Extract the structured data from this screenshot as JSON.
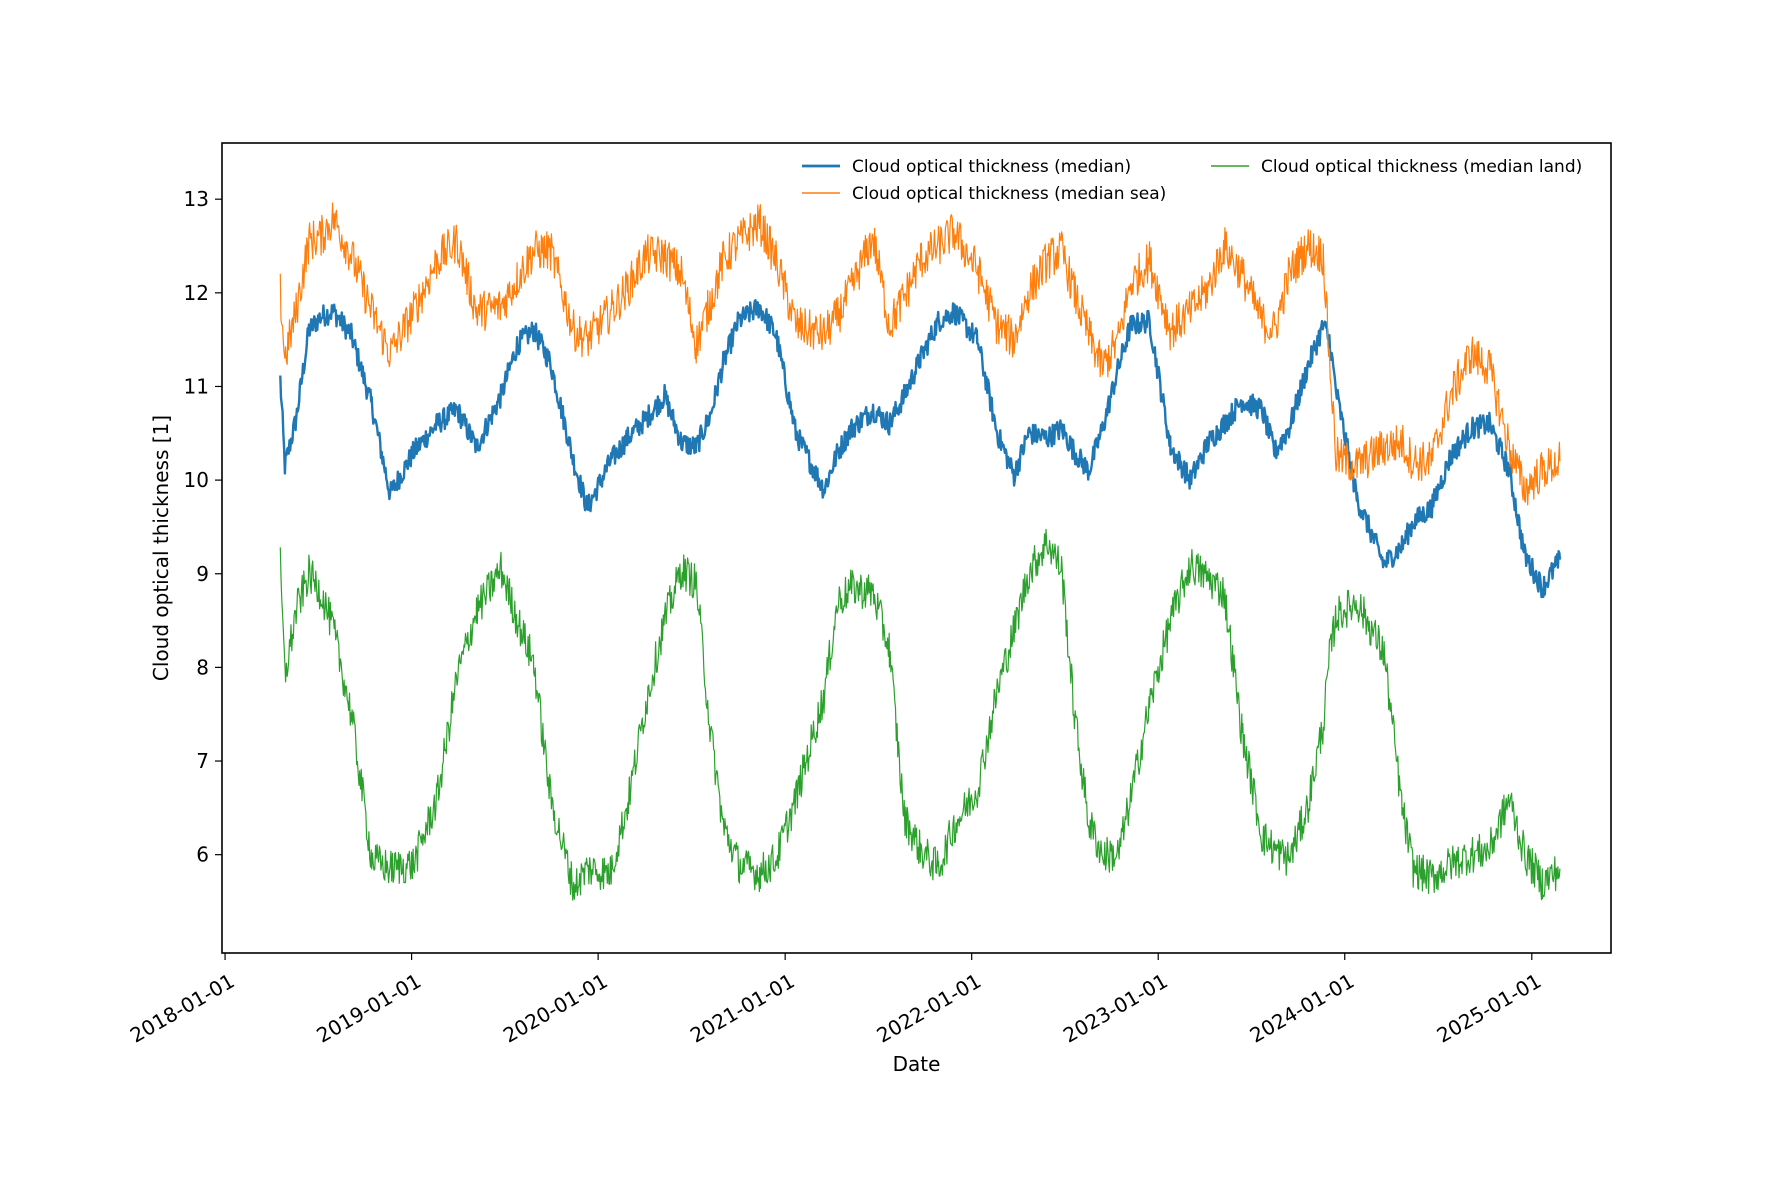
{
  "chart_data": {
    "type": "line",
    "title": "",
    "xlabel": "Date",
    "ylabel": "Cloud optical thickness [1]",
    "xlim": [
      "2017-12-26",
      "2025-06-05"
    ],
    "ylim": [
      4.95,
      13.6
    ],
    "x_ticks": [
      "2018-01-01",
      "2019-01-01",
      "2020-01-01",
      "2021-01-01",
      "2022-01-01",
      "2023-01-01",
      "2024-01-01",
      "2025-01-01"
    ],
    "y_ticks": [
      6,
      7,
      8,
      9,
      10,
      11,
      12,
      13
    ],
    "legend": {
      "placement": "top-right",
      "columns": 2
    },
    "grid": false,
    "series": [
      {
        "name": "Cloud optical thickness (median)",
        "color": "#1f77b4",
        "x": [
          "2018-04-19",
          "2018-04-28",
          "2018-05-20",
          "2018-06-14",
          "2018-07-08",
          "2018-08-01",
          "2018-09-05",
          "2018-10-15",
          "2018-11-20",
          "2019-01-05",
          "2019-02-20",
          "2019-03-31",
          "2019-05-08",
          "2019-06-25",
          "2019-07-27",
          "2019-08-28",
          "2019-09-30",
          "2019-11-14",
          "2019-12-11",
          "2020-01-25",
          "2020-02-28",
          "2020-04-03",
          "2020-05-10",
          "2020-06-12",
          "2020-07-11",
          "2020-08-08",
          "2020-09-02",
          "2020-10-02",
          "2020-11-12",
          "2020-12-14",
          "2021-01-22",
          "2021-03-18",
          "2021-04-14",
          "2021-05-11",
          "2021-06-22",
          "2021-07-24",
          "2021-08-22",
          "2021-09-23",
          "2021-10-28",
          "2021-11-27",
          "2022-01-12",
          "2022-02-20",
          "2022-03-25",
          "2022-04-22",
          "2022-05-29",
          "2022-06-26",
          "2022-07-21",
          "2022-08-18",
          "2022-09-14",
          "2022-10-15",
          "2022-11-08",
          "2022-12-15",
          "2023-01-25",
          "2023-03-05",
          "2023-04-09",
          "2023-05-10",
          "2023-06-14",
          "2023-07-23",
          "2023-08-17",
          "2023-09-14",
          "2023-10-20",
          "2023-11-20",
          "2023-12-02",
          "2023-12-15",
          "2024-01-25",
          "2024-03-18",
          "2024-04-22",
          "2024-05-14",
          "2024-06-18",
          "2024-07-26",
          "2024-09-04",
          "2024-10-10",
          "2024-11-18",
          "2024-12-18",
          "2025-01-22",
          "2025-02-25"
        ],
        "y": [
          11.08,
          10.15,
          10.65,
          11.6,
          11.75,
          11.8,
          11.55,
          10.8,
          9.85,
          10.3,
          10.6,
          10.75,
          10.35,
          10.9,
          11.45,
          11.6,
          11.25,
          10.2,
          9.7,
          10.2,
          10.45,
          10.65,
          10.9,
          10.4,
          10.35,
          10.7,
          11.25,
          11.7,
          11.85,
          11.55,
          10.5,
          9.9,
          10.3,
          10.55,
          10.75,
          10.6,
          10.9,
          11.3,
          11.7,
          11.8,
          11.5,
          10.5,
          10.05,
          10.5,
          10.45,
          10.55,
          10.3,
          10.1,
          10.55,
          11.2,
          11.65,
          11.7,
          10.35,
          10.0,
          10.4,
          10.6,
          10.85,
          10.75,
          10.3,
          10.55,
          11.2,
          11.65,
          11.5,
          10.95,
          9.8,
          9.1,
          9.3,
          9.55,
          9.7,
          10.25,
          10.55,
          10.6,
          10.1,
          9.2,
          8.85,
          9.15
        ]
      },
      {
        "name": "Cloud optical thickness (median sea)",
        "color": "#ff7f0e",
        "x": [
          "2018-04-19",
          "2018-04-28",
          "2018-05-20",
          "2018-06-14",
          "2018-07-08",
          "2018-08-01",
          "2018-09-05",
          "2018-10-15",
          "2018-11-20",
          "2019-01-05",
          "2019-02-20",
          "2019-03-31",
          "2019-05-08",
          "2019-06-25",
          "2019-07-27",
          "2019-08-28",
          "2019-09-30",
          "2019-11-14",
          "2019-12-11",
          "2020-01-25",
          "2020-02-28",
          "2020-04-03",
          "2020-05-10",
          "2020-06-12",
          "2020-07-11",
          "2020-08-08",
          "2020-09-02",
          "2020-10-02",
          "2020-11-12",
          "2020-12-14",
          "2021-01-22",
          "2021-03-18",
          "2021-04-14",
          "2021-05-11",
          "2021-06-22",
          "2021-07-24",
          "2021-08-22",
          "2021-09-23",
          "2021-10-28",
          "2021-11-27",
          "2022-01-12",
          "2022-02-20",
          "2022-03-25",
          "2022-04-22",
          "2022-05-29",
          "2022-06-26",
          "2022-07-21",
          "2022-08-18",
          "2022-09-14",
          "2022-10-15",
          "2022-11-08",
          "2022-12-15",
          "2023-01-25",
          "2023-03-05",
          "2023-04-09",
          "2023-05-10",
          "2023-06-14",
          "2023-07-23",
          "2023-08-17",
          "2023-09-14",
          "2023-10-20",
          "2023-11-20",
          "2023-12-02",
          "2023-12-15",
          "2024-01-25",
          "2024-03-18",
          "2024-04-22",
          "2024-05-14",
          "2024-06-18",
          "2024-07-26",
          "2024-09-04",
          "2024-10-10",
          "2024-11-18",
          "2024-12-18",
          "2025-01-22",
          "2025-02-25"
        ],
        "y": [
          12.0,
          11.3,
          11.8,
          12.55,
          12.6,
          12.8,
          12.4,
          11.8,
          11.35,
          11.8,
          12.35,
          12.55,
          11.8,
          11.85,
          12.15,
          12.45,
          12.45,
          11.6,
          11.5,
          11.8,
          12.05,
          12.4,
          12.4,
          12.2,
          11.45,
          11.9,
          12.35,
          12.55,
          12.75,
          12.35,
          11.65,
          11.55,
          11.75,
          12.05,
          12.6,
          11.65,
          11.95,
          12.35,
          12.5,
          12.65,
          12.25,
          11.65,
          11.5,
          12.0,
          12.35,
          12.45,
          12.0,
          11.55,
          11.2,
          11.5,
          12.1,
          12.35,
          11.6,
          11.8,
          12.05,
          12.5,
          12.2,
          11.7,
          11.6,
          12.2,
          12.5,
          12.4,
          11.3,
          10.25,
          10.15,
          10.35,
          10.4,
          10.2,
          10.2,
          10.9,
          11.35,
          11.2,
          10.35,
          9.9,
          10.1,
          10.2
        ]
      },
      {
        "name": "Cloud optical thickness (median land)",
        "color": "#2ca02c",
        "x": [
          "2018-04-19",
          "2018-04-28",
          "2018-05-20",
          "2018-06-14",
          "2018-07-08",
          "2018-08-01",
          "2018-09-05",
          "2018-10-15",
          "2018-11-20",
          "2019-01-05",
          "2019-02-20",
          "2019-03-31",
          "2019-05-08",
          "2019-06-25",
          "2019-07-27",
          "2019-08-28",
          "2019-09-30",
          "2019-11-14",
          "2019-12-11",
          "2020-01-25",
          "2020-02-28",
          "2020-04-03",
          "2020-05-10",
          "2020-06-12",
          "2020-07-11",
          "2020-08-08",
          "2020-09-02",
          "2020-10-02",
          "2020-11-12",
          "2020-12-14",
          "2021-01-22",
          "2021-03-18",
          "2021-04-14",
          "2021-05-11",
          "2021-06-22",
          "2021-07-24",
          "2021-08-22",
          "2021-09-23",
          "2021-10-28",
          "2021-11-27",
          "2022-01-12",
          "2022-02-20",
          "2022-03-25",
          "2022-04-22",
          "2022-05-29",
          "2022-06-26",
          "2022-07-21",
          "2022-08-18",
          "2022-09-14",
          "2022-10-15",
          "2022-11-08",
          "2022-12-15",
          "2023-01-25",
          "2023-03-05",
          "2023-04-09",
          "2023-05-10",
          "2023-06-14",
          "2023-07-23",
          "2023-08-17",
          "2023-09-14",
          "2023-10-20",
          "2023-11-20",
          "2023-12-02",
          "2023-12-15",
          "2024-01-25",
          "2024-03-18",
          "2024-04-22",
          "2024-05-14",
          "2024-06-18",
          "2024-07-26",
          "2024-09-04",
          "2024-10-10",
          "2024-11-18",
          "2024-12-18",
          "2025-01-22",
          "2025-02-25"
        ],
        "y": [
          9.1,
          7.9,
          8.6,
          9.0,
          8.8,
          8.4,
          7.5,
          5.95,
          5.85,
          5.9,
          6.6,
          7.9,
          8.6,
          9.05,
          8.5,
          8.05,
          6.6,
          5.65,
          5.85,
          5.8,
          6.55,
          7.6,
          8.5,
          9.05,
          8.9,
          7.3,
          6.3,
          5.9,
          5.8,
          5.95,
          6.6,
          7.7,
          8.7,
          8.85,
          8.8,
          8.2,
          6.4,
          6.05,
          5.85,
          6.3,
          6.7,
          7.75,
          8.4,
          9.0,
          9.35,
          9.05,
          7.5,
          6.35,
          6.0,
          6.0,
          6.6,
          7.6,
          8.5,
          9.1,
          8.95,
          8.8,
          7.3,
          6.2,
          6.05,
          5.95,
          6.5,
          7.4,
          8.1,
          8.55,
          8.7,
          8.15,
          6.5,
          5.85,
          5.75,
          5.9,
          6.0,
          6.05,
          6.6,
          6.0,
          5.7,
          5.85
        ]
      }
    ]
  }
}
